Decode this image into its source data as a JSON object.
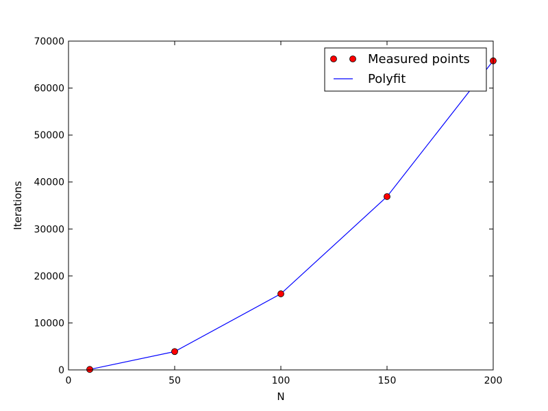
{
  "chart_data": {
    "type": "line",
    "title": "",
    "xlabel": "N",
    "ylabel": "Iterations",
    "xlim": [
      0,
      200
    ],
    "ylim": [
      0,
      70000
    ],
    "x_ticks": [
      0,
      50,
      100,
      150,
      200
    ],
    "y_ticks": [
      0,
      10000,
      20000,
      30000,
      40000,
      50000,
      60000,
      70000
    ],
    "x_tick_labels": [
      "0",
      "50",
      "100",
      "150",
      "200"
    ],
    "y_tick_labels": [
      "0",
      "10000",
      "20000",
      "30000",
      "40000",
      "50000",
      "60000",
      "70000"
    ],
    "grid": false,
    "legend_position": "top-right",
    "series": [
      {
        "name": "Measured points",
        "kind": "scatter",
        "color": "#ff0000",
        "x": [
          10,
          50,
          100,
          150,
          200
        ],
        "y": [
          100,
          3900,
          16200,
          36900,
          65800
        ]
      },
      {
        "name": "Polyfit",
        "kind": "line",
        "color": "#0000ff",
        "x": [
          10,
          50,
          100,
          150,
          200
        ],
        "y": [
          100,
          3900,
          16200,
          36900,
          65800
        ]
      }
    ]
  }
}
